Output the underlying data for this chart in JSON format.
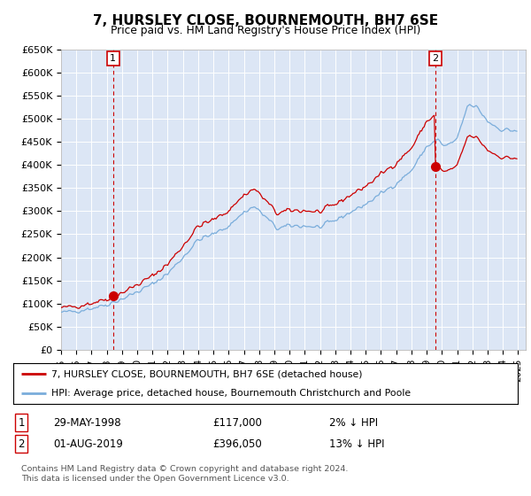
{
  "title": "7, HURSLEY CLOSE, BOURNEMOUTH, BH7 6SE",
  "subtitle": "Price paid vs. HM Land Registry's House Price Index (HPI)",
  "plot_bg_color": "#dce6f5",
  "grid_color": "#ffffff",
  "ylim": [
    0,
    650000
  ],
  "yticks": [
    0,
    50000,
    100000,
    150000,
    200000,
    250000,
    300000,
    350000,
    400000,
    450000,
    500000,
    550000,
    600000,
    650000
  ],
  "ytick_labels": [
    "£0",
    "£50K",
    "£100K",
    "£150K",
    "£200K",
    "£250K",
    "£300K",
    "£350K",
    "£400K",
    "£450K",
    "£500K",
    "£550K",
    "£600K",
    "£650K"
  ],
  "xlim_start": 1995.0,
  "xlim_end": 2025.5,
  "marker1_x": 1998.41,
  "marker1_y": 117000,
  "marker2_x": 2019.58,
  "marker2_y": 396050,
  "legend_line1": "7, HURSLEY CLOSE, BOURNEMOUTH, BH7 6SE (detached house)",
  "legend_line2": "HPI: Average price, detached house, Bournemouth Christchurch and Poole",
  "table_row1": [
    "1",
    "29-MAY-1998",
    "£117,000",
    "2% ↓ HPI"
  ],
  "table_row2": [
    "2",
    "01-AUG-2019",
    "£396,050",
    "13% ↓ HPI"
  ],
  "footer": "Contains HM Land Registry data © Crown copyright and database right 2024.\nThis data is licensed under the Open Government Licence v3.0.",
  "red_color": "#cc0000",
  "blue_color": "#7aaddb"
}
